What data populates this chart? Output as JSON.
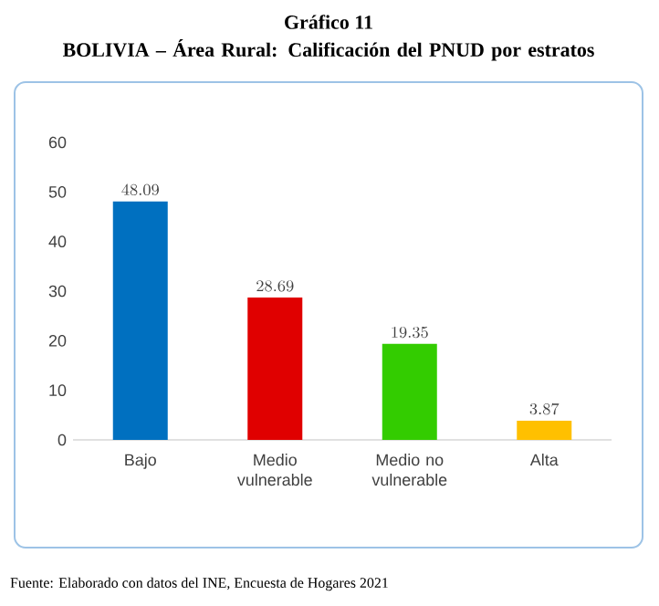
{
  "chart_data": {
    "type": "bar",
    "title": "Gráfico 11",
    "subtitle": "BOLIVIA – Área Rural: Calificación del PNUD por estratos",
    "categories": [
      "Bajo",
      "Medio vulnerable",
      "Medio no vulnerable",
      "Alta"
    ],
    "values": [
      48.09,
      28.69,
      19.35,
      3.87
    ],
    "colors": [
      "#0070c0",
      "#e00000",
      "#33cc00",
      "#ffc000"
    ],
    "ylim": [
      0,
      60
    ],
    "yticks": [
      0,
      10,
      20,
      30,
      40,
      50,
      60
    ],
    "grid": false,
    "data_labels": true,
    "annotations": [
      "Fuente: Elaborado con datos del INE, Encuesta de Hogares 2021"
    ]
  }
}
